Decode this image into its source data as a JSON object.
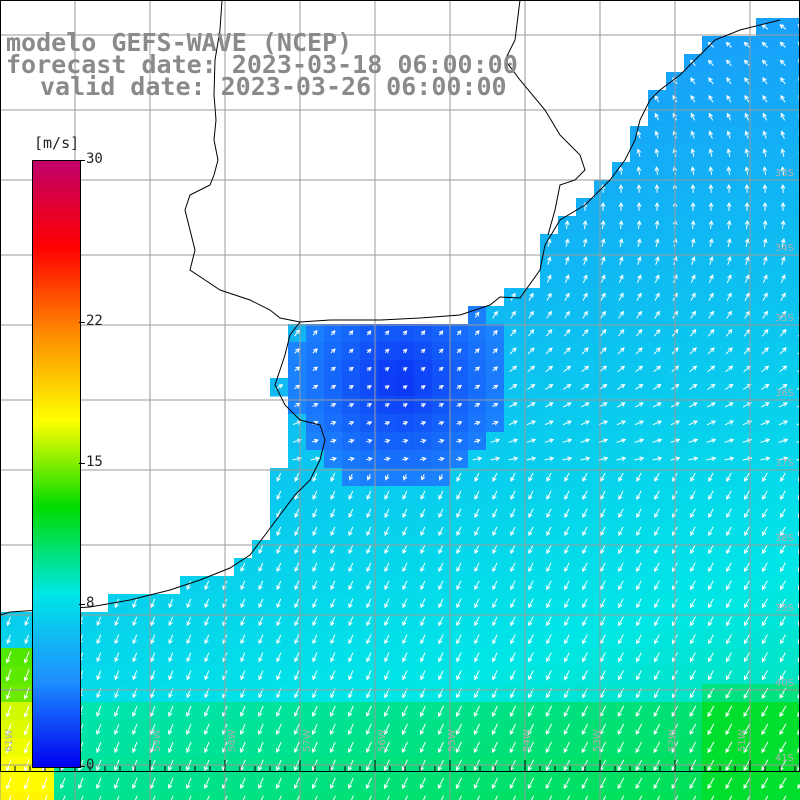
{
  "titles": {
    "model": "modelo GEFS-WAVE (NCEP)",
    "forecast": "forecast date: 2023-03-18 06:00:00",
    "valid": "valid date: 2023-03-26 06:00:00"
  },
  "colorbar": {
    "unit": "[m/s]",
    "ticks": [
      "30",
      "22",
      "15",
      "8",
      "0"
    ],
    "tick_values": [
      30,
      22,
      15,
      8,
      0
    ],
    "range": [
      0,
      30
    ],
    "colors": [
      "#0000f0",
      "#1e90ff",
      "#00e6e6",
      "#00dc00",
      "#ffff00",
      "#ff8c00",
      "#ff0000",
      "#c0006a"
    ]
  },
  "lat_labels": [
    "33S",
    "34S",
    "35S",
    "36S",
    "37S",
    "38S",
    "39S",
    "40S",
    "41S"
  ],
  "lon_labels": [
    "61W",
    "59W",
    "58W",
    "57W",
    "56W",
    "55W",
    "54W",
    "53W",
    "52W",
    "51W"
  ],
  "colors": {
    "land": "#ffffff",
    "grid": "#9a9a9a",
    "coast": "#000000",
    "arrow": "#ffffff",
    "title": "#8a8a8a"
  }
}
